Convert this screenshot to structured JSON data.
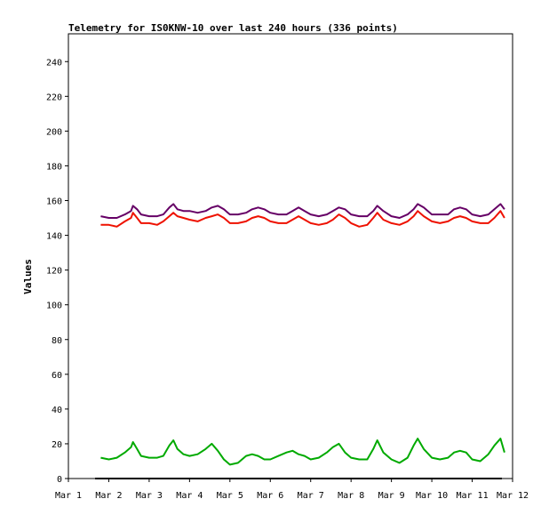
{
  "chart_data": {
    "type": "line",
    "title": "Telemetry for IS0KNW-10 over last 240 hours (336 points)",
    "xlabel": "",
    "ylabel": "Values",
    "x_ticks": [
      "Mar 1",
      "Mar 2",
      "Mar 3",
      "Mar 4",
      "Mar 5",
      "Mar 6",
      "Mar 7",
      "Mar 8",
      "Mar 9",
      "Mar 10",
      "Mar 11",
      "Mar 12"
    ],
    "y_ticks": [
      0,
      20,
      40,
      60,
      80,
      100,
      120,
      140,
      160,
      180,
      200,
      220,
      240
    ],
    "xlim": [
      1.0,
      12.0
    ],
    "ylim": [
      0,
      256
    ],
    "grid": false,
    "legend": "none",
    "colors": {
      "purple": "#660066",
      "red": "#ee1100",
      "green": "#00aa00",
      "axis": "#000000"
    },
    "series": [
      {
        "color": "#660066",
        "x": [
          1.8,
          2.0,
          2.2,
          2.4,
          2.55,
          2.6,
          2.7,
          2.8,
          3.0,
          3.2,
          3.35,
          3.5,
          3.6,
          3.7,
          3.85,
          4.0,
          4.2,
          4.4,
          4.55,
          4.7,
          4.85,
          5.0,
          5.2,
          5.4,
          5.55,
          5.7,
          5.85,
          6.0,
          6.2,
          6.4,
          6.55,
          6.7,
          6.85,
          7.0,
          7.2,
          7.4,
          7.55,
          7.7,
          7.85,
          8.0,
          8.2,
          8.4,
          8.55,
          8.65,
          8.8,
          9.0,
          9.2,
          9.4,
          9.55,
          9.65,
          9.8,
          10.0,
          10.2,
          10.4,
          10.55,
          10.7,
          10.85,
          11.0,
          11.2,
          11.4,
          11.55,
          11.7,
          11.8
        ],
        "values": [
          151,
          150,
          150,
          152,
          154,
          157,
          155,
          152,
          151,
          151,
          152,
          156,
          158,
          155,
          154,
          154,
          153,
          154,
          156,
          157,
          155,
          152,
          152,
          153,
          155,
          156,
          155,
          153,
          152,
          152,
          154,
          156,
          154,
          152,
          151,
          152,
          154,
          156,
          155,
          152,
          151,
          151,
          154,
          157,
          154,
          151,
          150,
          152,
          155,
          158,
          156,
          152,
          152,
          152,
          155,
          156,
          155,
          152,
          151,
          152,
          155,
          158,
          155
        ]
      },
      {
        "color": "#ee1100",
        "x": [
          1.8,
          2.0,
          2.2,
          2.4,
          2.55,
          2.6,
          2.7,
          2.8,
          3.0,
          3.2,
          3.35,
          3.5,
          3.6,
          3.7,
          3.85,
          4.0,
          4.2,
          4.4,
          4.55,
          4.7,
          4.85,
          5.0,
          5.2,
          5.4,
          5.55,
          5.7,
          5.85,
          6.0,
          6.2,
          6.4,
          6.55,
          6.7,
          6.85,
          7.0,
          7.2,
          7.4,
          7.55,
          7.7,
          7.85,
          8.0,
          8.2,
          8.4,
          8.55,
          8.65,
          8.8,
          9.0,
          9.2,
          9.4,
          9.55,
          9.65,
          9.8,
          10.0,
          10.2,
          10.4,
          10.55,
          10.7,
          10.85,
          11.0,
          11.2,
          11.4,
          11.55,
          11.7,
          11.8
        ],
        "values": [
          146,
          146,
          145,
          148,
          150,
          153,
          150,
          147,
          147,
          146,
          148,
          151,
          153,
          151,
          150,
          149,
          148,
          150,
          151,
          152,
          150,
          147,
          147,
          148,
          150,
          151,
          150,
          148,
          147,
          147,
          149,
          151,
          149,
          147,
          146,
          147,
          149,
          152,
          150,
          147,
          145,
          146,
          150,
          153,
          149,
          147,
          146,
          148,
          151,
          154,
          151,
          148,
          147,
          148,
          150,
          151,
          150,
          148,
          147,
          147,
          150,
          154,
          150
        ]
      },
      {
        "color": "#00aa00",
        "x": [
          1.8,
          2.0,
          2.2,
          2.4,
          2.55,
          2.6,
          2.7,
          2.8,
          3.0,
          3.2,
          3.35,
          3.5,
          3.6,
          3.7,
          3.85,
          4.0,
          4.2,
          4.4,
          4.55,
          4.7,
          4.85,
          5.0,
          5.2,
          5.4,
          5.55,
          5.7,
          5.85,
          6.0,
          6.2,
          6.4,
          6.55,
          6.7,
          6.85,
          7.0,
          7.2,
          7.4,
          7.55,
          7.7,
          7.85,
          8.0,
          8.2,
          8.4,
          8.55,
          8.65,
          8.8,
          9.0,
          9.2,
          9.4,
          9.55,
          9.65,
          9.8,
          10.0,
          10.2,
          10.4,
          10.55,
          10.7,
          10.85,
          11.0,
          11.2,
          11.4,
          11.55,
          11.7,
          11.8
        ],
        "values": [
          12,
          11,
          12,
          15,
          18,
          21,
          17,
          13,
          12,
          12,
          13,
          19,
          22,
          17,
          14,
          13,
          14,
          17,
          20,
          16,
          11,
          8,
          9,
          13,
          14,
          13,
          11,
          11,
          13,
          15,
          16,
          14,
          13,
          11,
          12,
          15,
          18,
          20,
          15,
          12,
          11,
          11,
          17,
          22,
          15,
          11,
          9,
          12,
          19,
          23,
          17,
          12,
          11,
          12,
          15,
          16,
          15,
          11,
          10,
          14,
          19,
          23,
          15
        ]
      }
    ]
  }
}
